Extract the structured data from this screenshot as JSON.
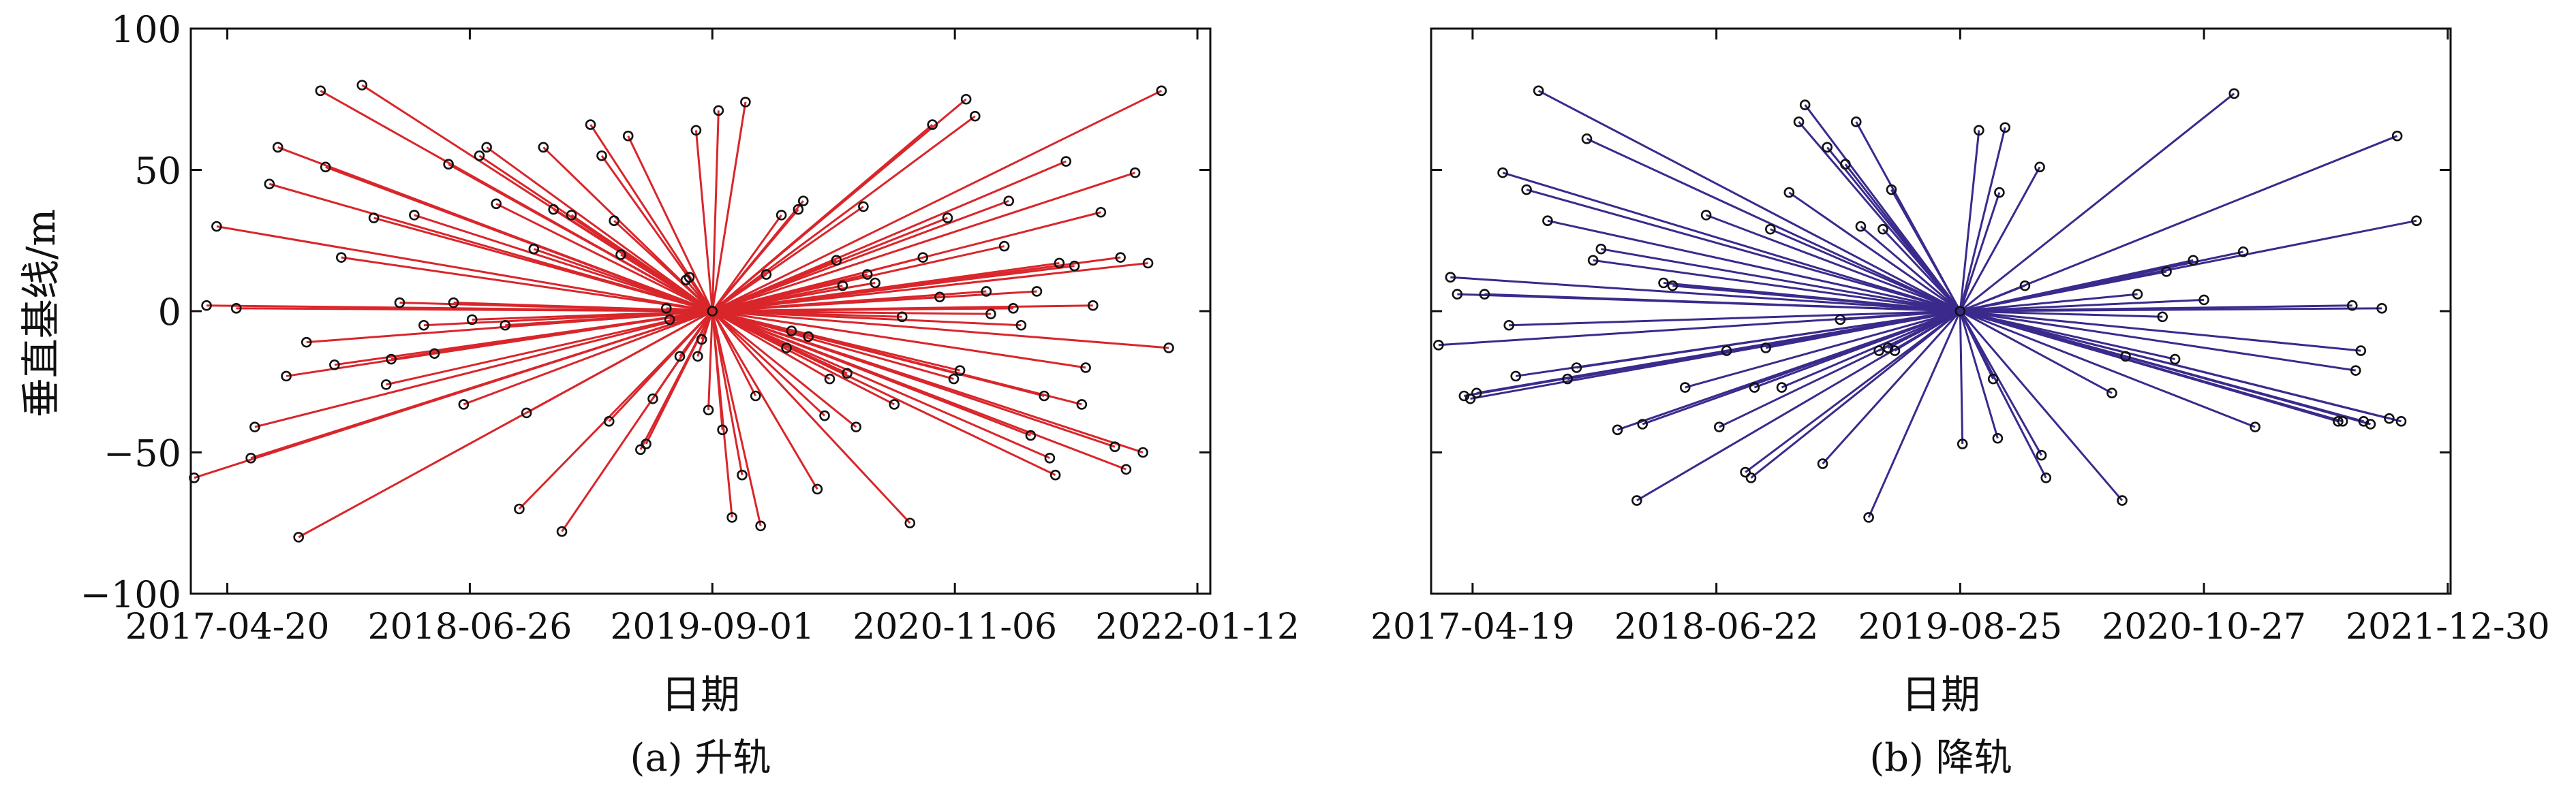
{
  "figure": {
    "shared_ylabel": "垂直基线/m",
    "yticks": [
      "100",
      "50",
      "0",
      "−50",
      "−100"
    ]
  },
  "chart_data": [
    {
      "type": "scatter",
      "caption": "(a) 升轨",
      "xlabel": "日期",
      "ylabel": "垂直基线/m",
      "xticklabels": [
        "2017-04-20",
        "2018-06-26",
        "2019-09-01",
        "2020-11-06",
        "2022-01-12"
      ],
      "xticks": [
        "2017-04-20",
        "2018-06-26",
        "2019-09-01",
        "2020-11-06",
        "2022-01-12"
      ],
      "xlim": [
        "2017-02-14",
        "2022-02-04"
      ],
      "ylim": [
        -100,
        100
      ],
      "yticks": [
        100,
        50,
        0,
        -50,
        -100
      ],
      "grid": false,
      "line_color": "#d9262b",
      "marker": "open-circle",
      "reference": {
        "x": "2019-09-01",
        "y": 0
      },
      "points": [
        {
          "x": "2017-02-20",
          "y": -59
        },
        {
          "x": "2017-03-14",
          "y": 2
        },
        {
          "x": "2017-04-01",
          "y": 30
        },
        {
          "x": "2017-05-06",
          "y": 1
        },
        {
          "x": "2017-06-01",
          "y": -52
        },
        {
          "x": "2017-06-08",
          "y": -41
        },
        {
          "x": "2017-07-04",
          "y": 45
        },
        {
          "x": "2017-07-19",
          "y": 58
        },
        {
          "x": "2017-08-03",
          "y": -23
        },
        {
          "x": "2017-08-25",
          "y": -80
        },
        {
          "x": "2017-09-08",
          "y": -11
        },
        {
          "x": "2017-10-03",
          "y": 78
        },
        {
          "x": "2017-10-12",
          "y": 51
        },
        {
          "x": "2017-10-28",
          "y": -19
        },
        {
          "x": "2017-11-09",
          "y": 19
        },
        {
          "x": "2017-12-16",
          "y": 80
        },
        {
          "x": "2018-01-06",
          "y": 33
        },
        {
          "x": "2018-01-28",
          "y": -26
        },
        {
          "x": "2018-02-06",
          "y": -17
        },
        {
          "x": "2018-02-21",
          "y": 3
        },
        {
          "x": "2018-03-19",
          "y": 34
        },
        {
          "x": "2018-04-05",
          "y": -5
        },
        {
          "x": "2018-04-24",
          "y": -15
        },
        {
          "x": "2018-05-19",
          "y": 52
        },
        {
          "x": "2018-05-28",
          "y": 3
        },
        {
          "x": "2018-06-15",
          "y": -33
        },
        {
          "x": "2018-06-30",
          "y": -3
        },
        {
          "x": "2018-07-13",
          "y": 55
        },
        {
          "x": "2018-07-26",
          "y": 58
        },
        {
          "x": "2018-08-12",
          "y": 38
        },
        {
          "x": "2018-08-28",
          "y": -5
        },
        {
          "x": "2018-09-22",
          "y": -70
        },
        {
          "x": "2018-10-05",
          "y": -36
        },
        {
          "x": "2018-10-18",
          "y": 22
        },
        {
          "x": "2018-11-04",
          "y": 58
        },
        {
          "x": "2018-11-22",
          "y": 36
        },
        {
          "x": "2018-12-07",
          "y": -78
        },
        {
          "x": "2018-12-24",
          "y": 34
        },
        {
          "x": "2019-01-27",
          "y": 66
        },
        {
          "x": "2019-02-16",
          "y": 55
        },
        {
          "x": "2019-03-01",
          "y": -39
        },
        {
          "x": "2019-03-10",
          "y": 32
        },
        {
          "x": "2019-03-22",
          "y": 20
        },
        {
          "x": "2019-04-04",
          "y": 62
        },
        {
          "x": "2019-04-26",
          "y": -49
        },
        {
          "x": "2019-05-06",
          "y": -47
        },
        {
          "x": "2019-05-18",
          "y": -31
        },
        {
          "x": "2019-06-11",
          "y": 1
        },
        {
          "x": "2019-06-17",
          "y": -3
        },
        {
          "x": "2019-07-05",
          "y": -16
        },
        {
          "x": "2019-07-16",
          "y": 11
        },
        {
          "x": "2019-07-22",
          "y": 12
        },
        {
          "x": "2019-08-03",
          "y": 64
        },
        {
          "x": "2019-08-06",
          "y": -16
        },
        {
          "x": "2019-08-13",
          "y": -10
        },
        {
          "x": "2019-09-01",
          "y": 0
        },
        {
          "x": "2019-08-25",
          "y": -35
        },
        {
          "x": "2019-09-12",
          "y": 71
        },
        {
          "x": "2019-09-19",
          "y": -42
        },
        {
          "x": "2019-10-06",
          "y": -73
        },
        {
          "x": "2019-10-24",
          "y": -58
        },
        {
          "x": "2019-10-30",
          "y": 74
        },
        {
          "x": "2019-11-17",
          "y": -30
        },
        {
          "x": "2019-11-26",
          "y": -76
        },
        {
          "x": "2019-12-06",
          "y": 13
        },
        {
          "x": "2020-01-02",
          "y": 34
        },
        {
          "x": "2020-01-11",
          "y": -13
        },
        {
          "x": "2020-01-20",
          "y": -7
        },
        {
          "x": "2020-02-01",
          "y": 36
        },
        {
          "x": "2020-02-10",
          "y": 39
        },
        {
          "x": "2020-02-19",
          "y": -9
        },
        {
          "x": "2020-03-06",
          "y": -63
        },
        {
          "x": "2020-03-19",
          "y": -37
        },
        {
          "x": "2020-03-28",
          "y": -24
        },
        {
          "x": "2020-04-09",
          "y": 18
        },
        {
          "x": "2020-04-20",
          "y": 9
        },
        {
          "x": "2020-04-28",
          "y": -22
        },
        {
          "x": "2020-05-14",
          "y": -41
        },
        {
          "x": "2020-05-27",
          "y": 37
        },
        {
          "x": "2020-06-03",
          "y": 13
        },
        {
          "x": "2020-06-17",
          "y": 10
        },
        {
          "x": "2020-07-21",
          "y": -33
        },
        {
          "x": "2020-08-04",
          "y": -2
        },
        {
          "x": "2020-08-18",
          "y": -75
        },
        {
          "x": "2020-09-10",
          "y": 19
        },
        {
          "x": "2020-09-27",
          "y": 66
        },
        {
          "x": "2020-10-10",
          "y": 5
        },
        {
          "x": "2020-10-24",
          "y": 33
        },
        {
          "x": "2020-11-04",
          "y": -24
        },
        {
          "x": "2020-11-15",
          "y": -21
        },
        {
          "x": "2020-11-26",
          "y": 75
        },
        {
          "x": "2020-12-12",
          "y": 69
        },
        {
          "x": "2021-01-01",
          "y": 7
        },
        {
          "x": "2021-01-09",
          "y": -1
        },
        {
          "x": "2021-02-02",
          "y": 23
        },
        {
          "x": "2021-02-10",
          "y": 39
        },
        {
          "x": "2021-02-18",
          "y": 1
        },
        {
          "x": "2021-03-04",
          "y": -5
        },
        {
          "x": "2021-03-21",
          "y": -44
        },
        {
          "x": "2021-04-01",
          "y": 7
        },
        {
          "x": "2021-04-14",
          "y": -30
        },
        {
          "x": "2021-04-24",
          "y": -52
        },
        {
          "x": "2021-05-04",
          "y": -58
        },
        {
          "x": "2021-05-11",
          "y": 17
        },
        {
          "x": "2021-05-23",
          "y": 53
        },
        {
          "x": "2021-06-07",
          "y": 16
        },
        {
          "x": "2021-06-20",
          "y": -33
        },
        {
          "x": "2021-06-27",
          "y": -20
        },
        {
          "x": "2021-07-10",
          "y": 2
        },
        {
          "x": "2021-07-24",
          "y": 35
        },
        {
          "x": "2021-08-18",
          "y": -48
        },
        {
          "x": "2021-08-28",
          "y": 19
        },
        {
          "x": "2021-09-07",
          "y": -56
        },
        {
          "x": "2021-09-23",
          "y": 49
        },
        {
          "x": "2021-10-07",
          "y": -50
        },
        {
          "x": "2021-10-16",
          "y": 17
        },
        {
          "x": "2021-11-09",
          "y": 78
        },
        {
          "x": "2021-11-22",
          "y": -13
        }
      ]
    },
    {
      "type": "scatter",
      "caption": "(b) 降轨",
      "xlabel": "日期",
      "xticklabels": [
        "2017-04-19",
        "2018-06-22",
        "2019-08-25",
        "2020-10-27",
        "2021-12-30"
      ],
      "xticks": [
        "2017-04-19",
        "2018-06-22",
        "2019-08-25",
        "2020-10-27",
        "2021-12-30"
      ],
      "xlim": [
        "2017-02-05",
        "2022-01-04"
      ],
      "ylim": [
        -100,
        100
      ],
      "yticks": [
        100,
        50,
        0,
        -50,
        -100
      ],
      "grid": false,
      "line_color": "#3b2a8c",
      "marker": "open-circle",
      "reference": {
        "x": "2019-08-25",
        "y": 0
      },
      "points": [
        {
          "x": "2017-02-18",
          "y": -12
        },
        {
          "x": "2017-03-11",
          "y": 12
        },
        {
          "x": "2017-03-23",
          "y": 6
        },
        {
          "x": "2017-04-04",
          "y": -30
        },
        {
          "x": "2017-04-15",
          "y": -31
        },
        {
          "x": "2017-04-26",
          "y": -29
        },
        {
          "x": "2017-05-10",
          "y": 6
        },
        {
          "x": "2017-06-11",
          "y": 49
        },
        {
          "x": "2017-06-22",
          "y": -5
        },
        {
          "x": "2017-07-04",
          "y": -23
        },
        {
          "x": "2017-07-23",
          "y": 43
        },
        {
          "x": "2017-08-13",
          "y": 78
        },
        {
          "x": "2017-08-29",
          "y": 32
        },
        {
          "x": "2017-10-03",
          "y": -24
        },
        {
          "x": "2017-10-19",
          "y": -20
        },
        {
          "x": "2017-11-06",
          "y": 61
        },
        {
          "x": "2017-11-17",
          "y": 18
        },
        {
          "x": "2017-12-01",
          "y": 22
        },
        {
          "x": "2017-12-30",
          "y": -42
        },
        {
          "x": "2018-02-02",
          "y": -67
        },
        {
          "x": "2018-02-12",
          "y": -40
        },
        {
          "x": "2018-03-21",
          "y": 10
        },
        {
          "x": "2018-04-06",
          "y": 9
        },
        {
          "x": "2018-04-28",
          "y": -27
        },
        {
          "x": "2018-06-04",
          "y": 34
        },
        {
          "x": "2018-06-27",
          "y": -41
        },
        {
          "x": "2018-07-10",
          "y": -14
        },
        {
          "x": "2018-08-12",
          "y": -57
        },
        {
          "x": "2018-08-22",
          "y": -59
        },
        {
          "x": "2018-08-28",
          "y": -27
        },
        {
          "x": "2018-09-17",
          "y": -13
        },
        {
          "x": "2018-09-25",
          "y": 29
        },
        {
          "x": "2018-10-15",
          "y": -27
        },
        {
          "x": "2018-10-28",
          "y": 42
        },
        {
          "x": "2018-11-14",
          "y": 67
        },
        {
          "x": "2018-11-25",
          "y": 73
        },
        {
          "x": "2018-12-26",
          "y": -54
        },
        {
          "x": "2019-01-03",
          "y": 58
        },
        {
          "x": "2019-01-26",
          "y": -3
        },
        {
          "x": "2019-02-04",
          "y": 52
        },
        {
          "x": "2019-02-23",
          "y": 67
        },
        {
          "x": "2019-03-03",
          "y": 30
        },
        {
          "x": "2019-03-17",
          "y": -73
        },
        {
          "x": "2019-04-04",
          "y": -14
        },
        {
          "x": "2019-04-11",
          "y": 29
        },
        {
          "x": "2019-04-20",
          "y": -13
        },
        {
          "x": "2019-04-26",
          "y": 43
        },
        {
          "x": "2019-05-02",
          "y": -14
        },
        {
          "x": "2019-08-25",
          "y": 0
        },
        {
          "x": "2019-08-29",
          "y": -47
        },
        {
          "x": "2019-09-27",
          "y": 64
        },
        {
          "x": "2019-10-22",
          "y": -24
        },
        {
          "x": "2019-10-30",
          "y": -45
        },
        {
          "x": "2019-11-02",
          "y": 42
        },
        {
          "x": "2019-11-12",
          "y": 65
        },
        {
          "x": "2019-12-17",
          "y": 9
        },
        {
          "x": "2020-01-12",
          "y": 51
        },
        {
          "x": "2020-01-15",
          "y": -51
        },
        {
          "x": "2020-01-23",
          "y": -59
        },
        {
          "x": "2020-05-18",
          "y": -29
        },
        {
          "x": "2020-06-05",
          "y": -67
        },
        {
          "x": "2020-06-11",
          "y": -16
        },
        {
          "x": "2020-07-02",
          "y": 6
        },
        {
          "x": "2020-08-15",
          "y": -2
        },
        {
          "x": "2020-08-22",
          "y": 14
        },
        {
          "x": "2020-09-06",
          "y": -17
        },
        {
          "x": "2020-10-08",
          "y": 18
        },
        {
          "x": "2020-10-27",
          "y": 4
        },
        {
          "x": "2020-12-19",
          "y": 77
        },
        {
          "x": "2021-01-04",
          "y": 21
        },
        {
          "x": "2021-01-25",
          "y": -41
        },
        {
          "x": "2021-06-20",
          "y": -39
        },
        {
          "x": "2021-06-28",
          "y": -39
        },
        {
          "x": "2021-07-15",
          "y": 2
        },
        {
          "x": "2021-07-21",
          "y": -21
        },
        {
          "x": "2021-07-30",
          "y": -14
        },
        {
          "x": "2021-08-04",
          "y": -39
        },
        {
          "x": "2021-08-16",
          "y": -40
        },
        {
          "x": "2021-09-05",
          "y": 1
        },
        {
          "x": "2021-09-18",
          "y": -38
        },
        {
          "x": "2021-10-02",
          "y": 62
        },
        {
          "x": "2021-10-09",
          "y": -39
        },
        {
          "x": "2021-11-05",
          "y": 32
        }
      ]
    }
  ]
}
